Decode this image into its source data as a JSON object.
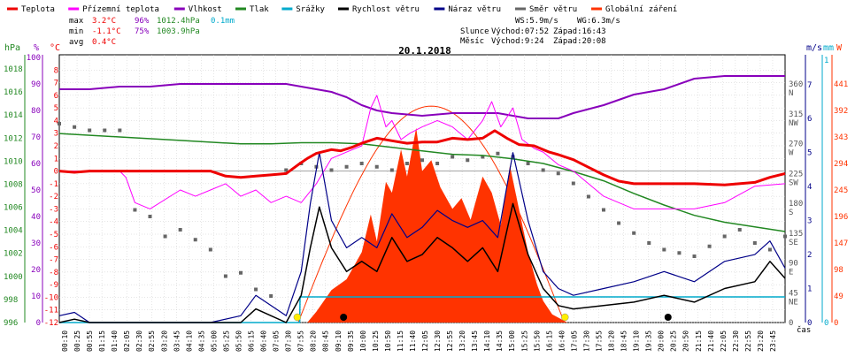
{
  "legend": [
    {
      "label": "Teplota",
      "color": "#ee0000"
    },
    {
      "label": "Přízemní teplota",
      "color": "#ff00ff"
    },
    {
      "label": "Vlhkost",
      "color": "#8800bb"
    },
    {
      "label": "Tlak",
      "color": "#228822"
    },
    {
      "label": "Srážky",
      "color": "#00aacc"
    },
    {
      "label": "Rychlost větru",
      "color": "#000000"
    },
    {
      "label": "Náraz větru",
      "color": "#000088"
    },
    {
      "label": "Směr větru",
      "color": "#666666"
    },
    {
      "label": "Globální záření",
      "color": "#ff3300"
    }
  ],
  "stats": {
    "max_label": "max",
    "max_temp": "3.2°C",
    "max_hum": "96%",
    "max_press": "1012.4hPa",
    "max_rain": "0.1mm",
    "min_label": "min",
    "min_temp": "-1.1°C",
    "min_hum": "75%",
    "min_press": "1003.9hPa",
    "avg_label": "avg",
    "avg_temp": "0.4°C"
  },
  "wind": {
    "ws": "WS:5.9m/s",
    "wg": "WG:6.3m/s"
  },
  "sun": {
    "label": "Slunce",
    "rise": "Východ:07:52",
    "set": "Západ:16:43"
  },
  "moon": {
    "label": "Měsíc",
    "rise": "Východ:9:24",
    "set": "Západ:20:08"
  },
  "date": "20.1.2018",
  "unit_labels": {
    "hpa": "hPa",
    "pct": "%",
    "degc": "°C",
    "ms": "m/s",
    "mm": "mm",
    "w": "W",
    "cas": "čas"
  },
  "axes": {
    "hpa_ticks": [
      "1018",
      "1016",
      "1014",
      "1012",
      "1010",
      "1008",
      "1006",
      "1004",
      "1002",
      "1000",
      "998",
      "996"
    ],
    "pct_ticks": [
      "100",
      "90",
      "80",
      "70",
      "60",
      "50",
      "40",
      "30",
      "20",
      "10",
      "0"
    ],
    "temp_ticks": [
      "8",
      "7",
      "6",
      "5",
      "4",
      "3",
      "2",
      "1",
      "0",
      "-1",
      "-2",
      "-3",
      "-4",
      "-5",
      "-6",
      "-7",
      "-8",
      "-9",
      "-10",
      "-11",
      "-12"
    ],
    "dir_ticks": [
      {
        "deg": "360",
        "dir": "N",
        "v": 360
      },
      {
        "deg": "315",
        "dir": "NW",
        "v": 315
      },
      {
        "deg": "270",
        "dir": "W",
        "v": 270
      },
      {
        "deg": "225",
        "dir": "SW",
        "v": 225
      },
      {
        "deg": "180",
        "dir": "S",
        "v": 180
      },
      {
        "deg": "135",
        "dir": "SE",
        "v": 135
      },
      {
        "deg": "90",
        "dir": "E",
        "v": 90
      },
      {
        "deg": "45",
        "dir": "NE",
        "v": 45
      },
      {
        "deg": "0",
        "dir": "",
        "v": 0
      }
    ],
    "ms_ticks": [
      "7",
      "6",
      "5",
      "4",
      "3",
      "2",
      "1",
      "0"
    ],
    "mm_ticks": [
      "1",
      "0"
    ],
    "w_ticks": [
      "441",
      "392",
      "343",
      "294",
      "245",
      "196",
      "147",
      "98",
      "49",
      "0"
    ],
    "x_ticks": [
      "00:10",
      "00:25",
      "00:55",
      "01:15",
      "01:40",
      "02:05",
      "02:30",
      "02:55",
      "03:20",
      "03:45",
      "04:10",
      "04:35",
      "05:00",
      "05:25",
      "05:50",
      "06:15",
      "06:40",
      "07:05",
      "07:30",
      "07:55",
      "08:20",
      "08:45",
      "09:10",
      "09:35",
      "10:00",
      "10:25",
      "10:50",
      "11:15",
      "11:40",
      "12:05",
      "12:30",
      "12:55",
      "13:20",
      "13:45",
      "14:10",
      "14:35",
      "15:00",
      "15:25",
      "15:50",
      "16:15",
      "16:40",
      "17:05",
      "17:30",
      "17:55",
      "18:20",
      "18:45",
      "19:10",
      "19:35",
      "20:00",
      "20:25",
      "20:50",
      "21:15",
      "21:40",
      "22:05",
      "22:30",
      "22:55",
      "23:20",
      "23:45"
    ]
  },
  "chart_data": {
    "type": "line",
    "title": "20.1.2018",
    "x_range_hours": [
      0,
      24
    ],
    "series": [
      {
        "name": "Teplota",
        "unit": "°C",
        "color": "#ee0000",
        "x": [
          0,
          0.5,
          1,
          1.5,
          2,
          3,
          4,
          5,
          5.5,
          6,
          6.5,
          7,
          7.5,
          7.9,
          8.2,
          8.5,
          9,
          9.3,
          9.7,
          10,
          10.5,
          11,
          11.5,
          12,
          12.5,
          13,
          13.5,
          14,
          14.4,
          14.8,
          15.2,
          15.7,
          16.2,
          16.5,
          17,
          17.5,
          18,
          18.5,
          19,
          20,
          21,
          22,
          23,
          23.5,
          24
        ],
        "values": [
          0,
          -0.1,
          0,
          0,
          0,
          0,
          0,
          0,
          -0.4,
          -0.5,
          -0.4,
          -0.3,
          -0.2,
          0.5,
          1,
          1.4,
          1.7,
          1.6,
          1.9,
          2.2,
          2.6,
          2.4,
          2.2,
          2.3,
          2.3,
          2.6,
          2.5,
          2.6,
          3.2,
          2.6,
          2.1,
          2,
          1.5,
          1.3,
          0.9,
          0.3,
          -0.3,
          -0.8,
          -1,
          -1,
          -1,
          -1.1,
          -0.9,
          -0.5,
          -0.2
        ]
      },
      {
        "name": "Přízemní teplota",
        "unit": "°C",
        "color": "#ff00ff",
        "x": [
          0,
          1,
          2,
          2.2,
          2.5,
          3,
          4,
          4.5,
          5,
          5.5,
          6,
          6.5,
          7,
          7.5,
          8,
          8.5,
          9,
          9.5,
          10,
          10.3,
          10.5,
          10.8,
          11,
          11.3,
          11.6,
          12,
          12.5,
          13,
          13.5,
          14,
          14.3,
          14.6,
          15,
          15.3,
          15.7,
          16,
          16.5,
          17,
          17.5,
          18,
          18.5,
          19,
          20,
          21,
          22,
          23,
          24
        ],
        "values": [
          0,
          0,
          0,
          -0.5,
          -2.5,
          -3,
          -1.5,
          -2,
          -1.5,
          -1,
          -2,
          -1.5,
          -2.5,
          -2,
          -2.5,
          -1,
          1,
          1.5,
          2,
          5,
          6,
          3.5,
          4,
          2.5,
          3,
          3.5,
          4,
          3.5,
          2.5,
          4,
          5.5,
          3.5,
          5,
          2.5,
          1.8,
          1.5,
          0.5,
          0,
          -1,
          -2,
          -2.5,
          -3,
          -3,
          -3,
          -2.5,
          -1.2,
          -1
        ]
      },
      {
        "name": "Vlhkost",
        "unit": "%",
        "color": "#8800bb",
        "x": [
          0,
          1,
          2,
          3,
          4,
          5,
          6,
          7,
          7.5,
          8,
          8.5,
          9,
          9.5,
          10,
          10.5,
          11,
          12,
          13,
          14,
          14.5,
          15,
          15.5,
          16,
          16.5,
          17,
          18,
          19,
          20,
          21,
          22,
          23,
          24
        ],
        "values": [
          88,
          88,
          89,
          89,
          90,
          90,
          90,
          90,
          90,
          89,
          88,
          87,
          85,
          82,
          80,
          79,
          78,
          79,
          79,
          79,
          78,
          77,
          77,
          77,
          79,
          82,
          86,
          88,
          92,
          93,
          93,
          93
        ],
        "scale": [
          0,
          100
        ]
      },
      {
        "name": "Tlak",
        "unit": "hPa",
        "color": "#228822",
        "x": [
          0,
          2,
          4,
          6,
          7,
          8,
          9,
          10,
          11,
          12,
          13,
          14,
          15,
          16,
          17,
          18,
          19,
          20,
          21,
          22,
          23,
          24
        ],
        "values": [
          1012.4,
          1012.1,
          1011.8,
          1011.5,
          1011.5,
          1011.6,
          1011.6,
          1011.5,
          1011.2,
          1010.9,
          1010.6,
          1010.5,
          1010.2,
          1009.8,
          1009.1,
          1008.3,
          1007.2,
          1006.2,
          1005.3,
          1004.7,
          1004.3,
          1003.9
        ],
        "scale": [
          996,
          1019
        ]
      },
      {
        "name": "Rychlost větru",
        "unit": "m/s",
        "color": "#000000",
        "x": [
          0,
          0.5,
          1,
          1.5,
          2,
          3,
          4,
          5,
          6,
          6.5,
          7,
          7.5,
          8,
          8.3,
          8.6,
          9,
          9.5,
          10,
          10.5,
          11,
          11.5,
          12,
          12.5,
          13,
          13.5,
          14,
          14.5,
          15,
          15.5,
          16,
          16.5,
          17,
          18,
          19,
          20,
          21,
          22,
          23,
          23.5,
          24
        ],
        "values": [
          0,
          0.1,
          0,
          0,
          0,
          0,
          0,
          0,
          0,
          0.4,
          0.2,
          0,
          0.8,
          2.2,
          3.4,
          2.2,
          1.5,
          1.8,
          1.5,
          2.5,
          1.8,
          2,
          2.5,
          2.2,
          1.8,
          2.2,
          1.5,
          3.5,
          2,
          1,
          0.5,
          0.4,
          0.5,
          0.6,
          0.8,
          0.6,
          1,
          1.2,
          1.8,
          1.3
        ]
      },
      {
        "name": "Náraz větru",
        "unit": "m/s",
        "color": "#000088",
        "x": [
          0,
          0.5,
          1,
          1.5,
          2,
          3,
          4,
          5,
          6,
          6.5,
          7,
          7.5,
          8,
          8.3,
          8.6,
          9,
          9.5,
          10,
          10.5,
          11,
          11.5,
          12,
          12.5,
          13,
          13.5,
          14,
          14.5,
          15,
          15.5,
          16,
          16.5,
          17,
          18,
          19,
          20,
          21,
          22,
          23,
          23.5,
          24
        ],
        "values": [
          0.2,
          0.3,
          0,
          0,
          0,
          0,
          0,
          0,
          0.2,
          0.8,
          0.5,
          0.2,
          1.5,
          3.5,
          5,
          3,
          2.2,
          2.5,
          2.2,
          3.2,
          2.5,
          2.8,
          3.3,
          3,
          2.8,
          3,
          2.5,
          5,
          3,
          1.5,
          1,
          0.8,
          1,
          1.2,
          1.5,
          1.2,
          1.8,
          2,
          2.4,
          1.6
        ]
      },
      {
        "name": "Srážky",
        "unit": "mm",
        "color": "#00aacc",
        "x": [
          0,
          7.95,
          7.96,
          24
        ],
        "values": [
          0,
          0,
          0.1,
          0.1
        ]
      },
      {
        "name": "Globální záření",
        "unit": "W",
        "color": "#ff3300",
        "x": [
          0,
          8.2,
          8.5,
          9,
          9.5,
          10,
          10.3,
          10.5,
          10.8,
          11,
          11.3,
          11.5,
          11.8,
          12,
          12.3,
          12.6,
          13,
          13.3,
          13.6,
          14,
          14.3,
          14.6,
          14.9,
          15.2,
          15.5,
          15.8,
          16,
          16.3,
          16.8,
          24
        ],
        "values": [
          0,
          0,
          20,
          60,
          80,
          130,
          200,
          150,
          260,
          240,
          320,
          270,
          360,
          280,
          300,
          250,
          210,
          230,
          190,
          270,
          240,
          180,
          290,
          210,
          130,
          70,
          40,
          15,
          0,
          0
        ]
      },
      {
        "name": "Směr větru",
        "unit": "°",
        "color": "#666666",
        "x": [
          0,
          0.5,
          1,
          1.5,
          2,
          2.5,
          3,
          3.5,
          4,
          4.5,
          5,
          5.5,
          6,
          6.5,
          7,
          7.5,
          8,
          8.5,
          9,
          9.5,
          10,
          10.5,
          11,
          11.5,
          12,
          12.5,
          13,
          13.5,
          14,
          14.5,
          15,
          15.5,
          16,
          16.5,
          17,
          17.5,
          18,
          18.5,
          19,
          19.5,
          20,
          20.5,
          21,
          21.5,
          22,
          22.5,
          23,
          23.5,
          24
        ],
        "values": [
          300,
          295,
          290,
          290,
          290,
          170,
          160,
          130,
          140,
          125,
          110,
          70,
          75,
          50,
          40,
          230,
          240,
          235,
          230,
          235,
          240,
          235,
          230,
          240,
          245,
          240,
          250,
          245,
          250,
          255,
          250,
          240,
          230,
          225,
          210,
          190,
          170,
          150,
          135,
          120,
          110,
          105,
          100,
          115,
          130,
          140,
          120,
          110,
          130
        ]
      }
    ]
  }
}
